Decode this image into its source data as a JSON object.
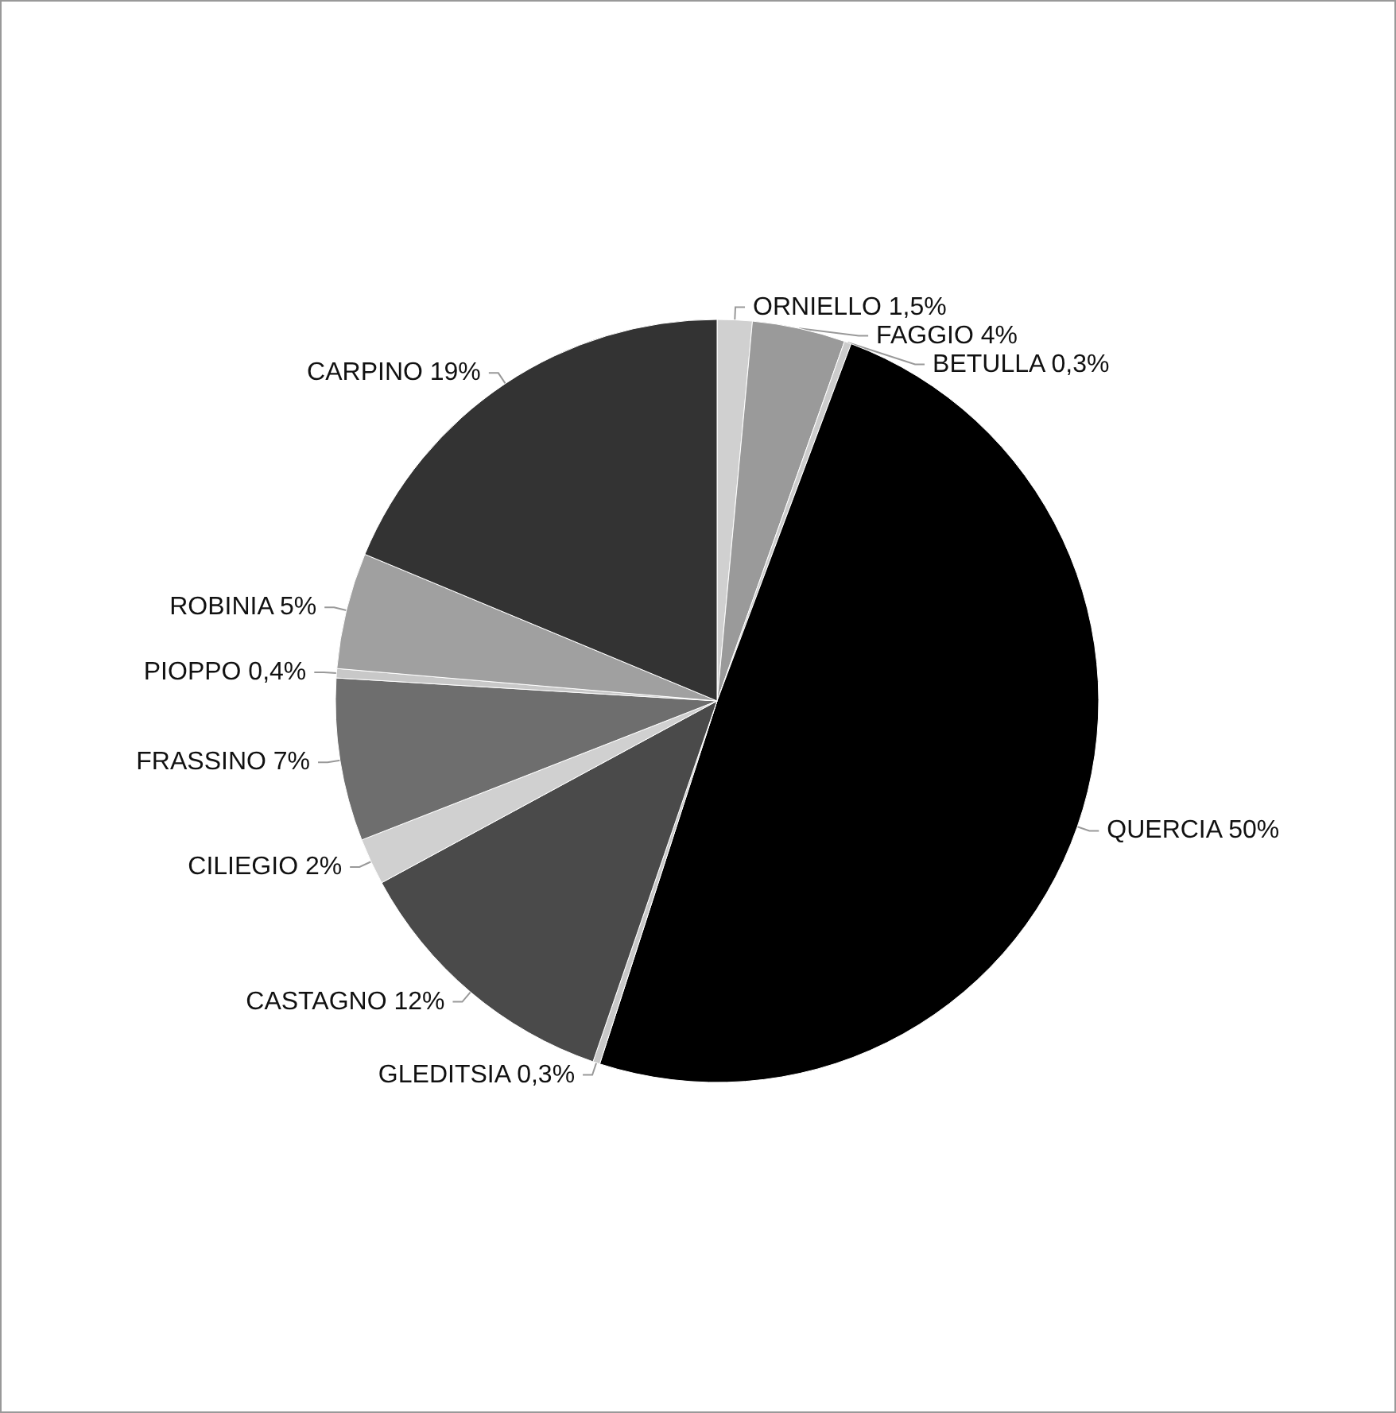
{
  "chart_data": {
    "type": "pie",
    "categories": [
      "ORNIELLO",
      "FAGGIO",
      "BETULLA",
      "QUERCIA",
      "GLEDITSIA",
      "CASTAGNO",
      "CILIEGIO",
      "FRASSINO",
      "PIOPPO",
      "ROBINIA",
      "CARPINO"
    ],
    "values": [
      1.5,
      4,
      0.3,
      50,
      0.3,
      12,
      2,
      7,
      0.4,
      5,
      19
    ],
    "colors": [
      "#d0d0d0",
      "#9a9a9a",
      "#cccccc",
      "#000000",
      "#c8c8c8",
      "#4a4a4a",
      "#d0d0d0",
      "#6e6e6e",
      "#c8c8c8",
      "#a0a0a0",
      "#333333"
    ],
    "value_labels": [
      "1,5%",
      "4%",
      "0,3%",
      "50%",
      "0,3%",
      "12%",
      "2%",
      "7%",
      "0,4%",
      "5%",
      "19%"
    ],
    "legend": false
  }
}
